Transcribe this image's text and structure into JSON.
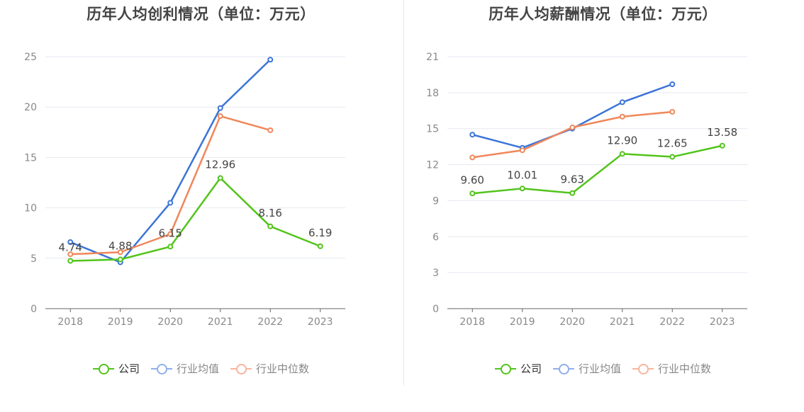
{
  "colors": {
    "company": "#52c41a",
    "industry_avg": "#3b74d8",
    "industry_median": "#f0875a",
    "legend_avg": "#8fb0ea",
    "legend_median": "#f7b59d",
    "axis_text": "#888888",
    "grid": "#e6e9f0",
    "axis_line": "#666666",
    "label_text": "#444444"
  },
  "legend": [
    "公司",
    "行业均值",
    "行业中位数"
  ],
  "chart_data": [
    {
      "type": "line",
      "title": "历年人均创利情况（单位：万元）",
      "categories": [
        "2018",
        "2019",
        "2020",
        "2021",
        "2022",
        "2023"
      ],
      "ylim": [
        0,
        25
      ],
      "yticks": [
        0,
        5,
        10,
        15,
        20,
        25
      ],
      "grid": true,
      "legend_position": "bottom",
      "series": [
        {
          "name": "公司",
          "values": [
            4.74,
            4.88,
            6.15,
            12.96,
            8.16,
            6.19
          ],
          "labels": [
            "4.74",
            "4.88",
            "6.15",
            "12.96",
            "8.16",
            "6.19"
          ]
        },
        {
          "name": "行业均值",
          "values": [
            6.6,
            4.6,
            10.5,
            19.9,
            24.7,
            null
          ]
        },
        {
          "name": "行业中位数",
          "values": [
            5.4,
            5.6,
            7.4,
            19.1,
            17.7,
            null
          ]
        }
      ]
    },
    {
      "type": "line",
      "title": "历年人均薪酬情况（单位：万元）",
      "categories": [
        "2018",
        "2019",
        "2020",
        "2021",
        "2022",
        "2023"
      ],
      "ylim": [
        0,
        21
      ],
      "yticks": [
        0,
        3,
        6,
        9,
        12,
        15,
        18,
        21
      ],
      "grid": true,
      "legend_position": "bottom",
      "series": [
        {
          "name": "公司",
          "values": [
            9.6,
            10.01,
            9.63,
            12.9,
            12.65,
            13.58
          ],
          "labels": [
            "9.60",
            "10.01",
            "9.63",
            "12.90",
            "12.65",
            "13.58"
          ]
        },
        {
          "name": "行业均值",
          "values": [
            14.5,
            13.4,
            15.0,
            17.2,
            18.7,
            null
          ]
        },
        {
          "name": "行业中位数",
          "values": [
            12.6,
            13.2,
            15.1,
            16.0,
            16.4,
            null
          ]
        }
      ]
    }
  ]
}
